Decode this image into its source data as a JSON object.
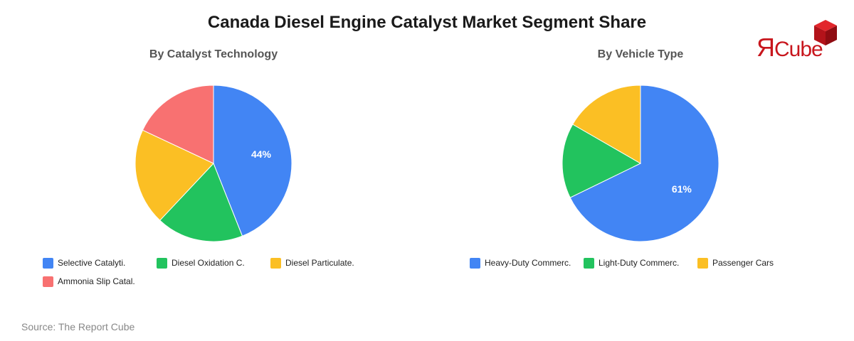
{
  "title": "Canada Diesel Engine Catalyst Market Segment Share",
  "source": "Source: The Report Cube",
  "logo": {
    "prefix": "Я",
    "suffix": "Cube",
    "color": "#c8161d"
  },
  "chart_data": [
    {
      "type": "pie",
      "title": "By Catalyst Technology",
      "categories": [
        "Selective Catalyti.",
        "Diesel Oxidation C.",
        "Diesel Particulate.",
        "Ammonia Slip Catal."
      ],
      "values": [
        44,
        18,
        20,
        18
      ],
      "colors": [
        "#4285f4",
        "#22c35e",
        "#fbbf24",
        "#f87171"
      ],
      "data_labels": [
        "44%",
        "",
        "",
        ""
      ],
      "legend": "bottom"
    },
    {
      "type": "pie",
      "title": "By Vehicle Type",
      "categories": [
        "Heavy-Duty Commerc.",
        "Light-Duty Commerc.",
        "Passenger Cars"
      ],
      "values": [
        61,
        14,
        15
      ],
      "colors": [
        "#4285f4",
        "#22c35e",
        "#fbbf24"
      ],
      "data_labels": [
        "61%",
        "",
        ""
      ],
      "legend": "bottom"
    }
  ]
}
